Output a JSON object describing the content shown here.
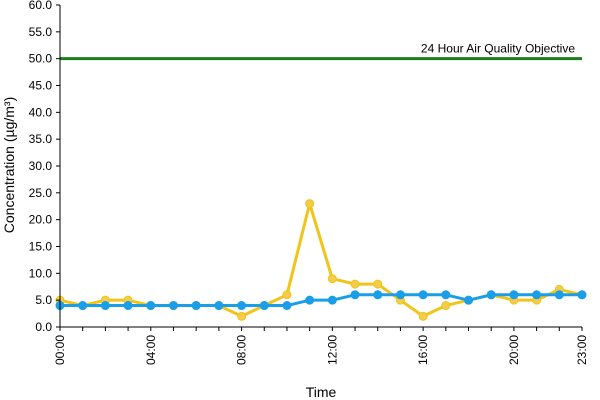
{
  "chart_data": {
    "type": "line",
    "title": "",
    "xlabel": "Time",
    "ylabel": "Concentration (µg/m³)",
    "ylim": [
      0,
      60
    ],
    "yticks": [
      "0.0",
      "5.0",
      "10.0",
      "15.0",
      "20.0",
      "25.0",
      "30.0",
      "35.0",
      "40.0",
      "45.0",
      "50.0",
      "55.0",
      "60.0"
    ],
    "xlim": [
      0,
      23
    ],
    "xticks": [
      "00:00",
      "04:00",
      "08:00",
      "12:00",
      "16:00",
      "20:00",
      "23:00"
    ],
    "xtick_positions": [
      0,
      4,
      8,
      12,
      16,
      20,
      23
    ],
    "grid": false,
    "legend": "none",
    "x": [
      0,
      1,
      2,
      3,
      4,
      5,
      6,
      7,
      8,
      9,
      10,
      11,
      12,
      13,
      14,
      15,
      16,
      17,
      18,
      19,
      20,
      21,
      22,
      23
    ],
    "series": [
      {
        "color": "#f0c419",
        "marker_fill": "#f2cc4a",
        "values": [
          5,
          4,
          5,
          5,
          4,
          4,
          4,
          4,
          2,
          4,
          6,
          23,
          9,
          8,
          8,
          5,
          2,
          4,
          5,
          6,
          5,
          5,
          7,
          6
        ]
      },
      {
        "color": "#1a9ee8",
        "marker_fill": "#1a9ee8",
        "values": [
          4,
          4,
          4,
          4,
          4,
          4,
          4,
          4,
          4,
          4,
          4,
          5,
          5,
          6,
          6,
          6,
          6,
          6,
          5,
          6,
          6,
          6,
          6,
          6
        ]
      }
    ],
    "reference_line": {
      "value": 50,
      "label": "24 Hour Air Quality Objective",
      "color": "#1e7d1e"
    }
  }
}
